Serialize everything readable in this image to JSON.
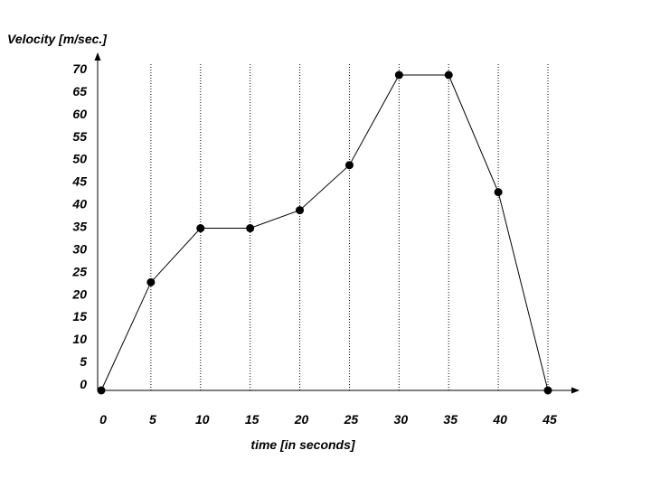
{
  "chart_data": {
    "type": "line",
    "xlabel": "time [in seconds]",
    "ylabel": "Velocity [m/sec.]",
    "xlim": [
      0,
      45
    ],
    "ylim": [
      0,
      70
    ],
    "x_ticks": [
      0,
      5,
      10,
      15,
      20,
      25,
      30,
      35,
      40,
      45
    ],
    "y_ticks": [
      0,
      5,
      10,
      15,
      20,
      25,
      30,
      35,
      40,
      45,
      50,
      55,
      60,
      65,
      70
    ],
    "x_gridlines": [
      5,
      10,
      15,
      20,
      25,
      30,
      35,
      40,
      45
    ],
    "grid": "vertical dotted",
    "series": [
      {
        "x": [
          0,
          5,
          10,
          15,
          20,
          25,
          30,
          35,
          40,
          45
        ],
        "y": [
          0,
          24,
          36,
          36,
          40,
          50,
          70,
          70,
          44,
          0
        ]
      }
    ],
    "colors": {
      "line": "#000000",
      "marker": "#000000",
      "grid": "#000000",
      "background": "#ffffff"
    }
  }
}
